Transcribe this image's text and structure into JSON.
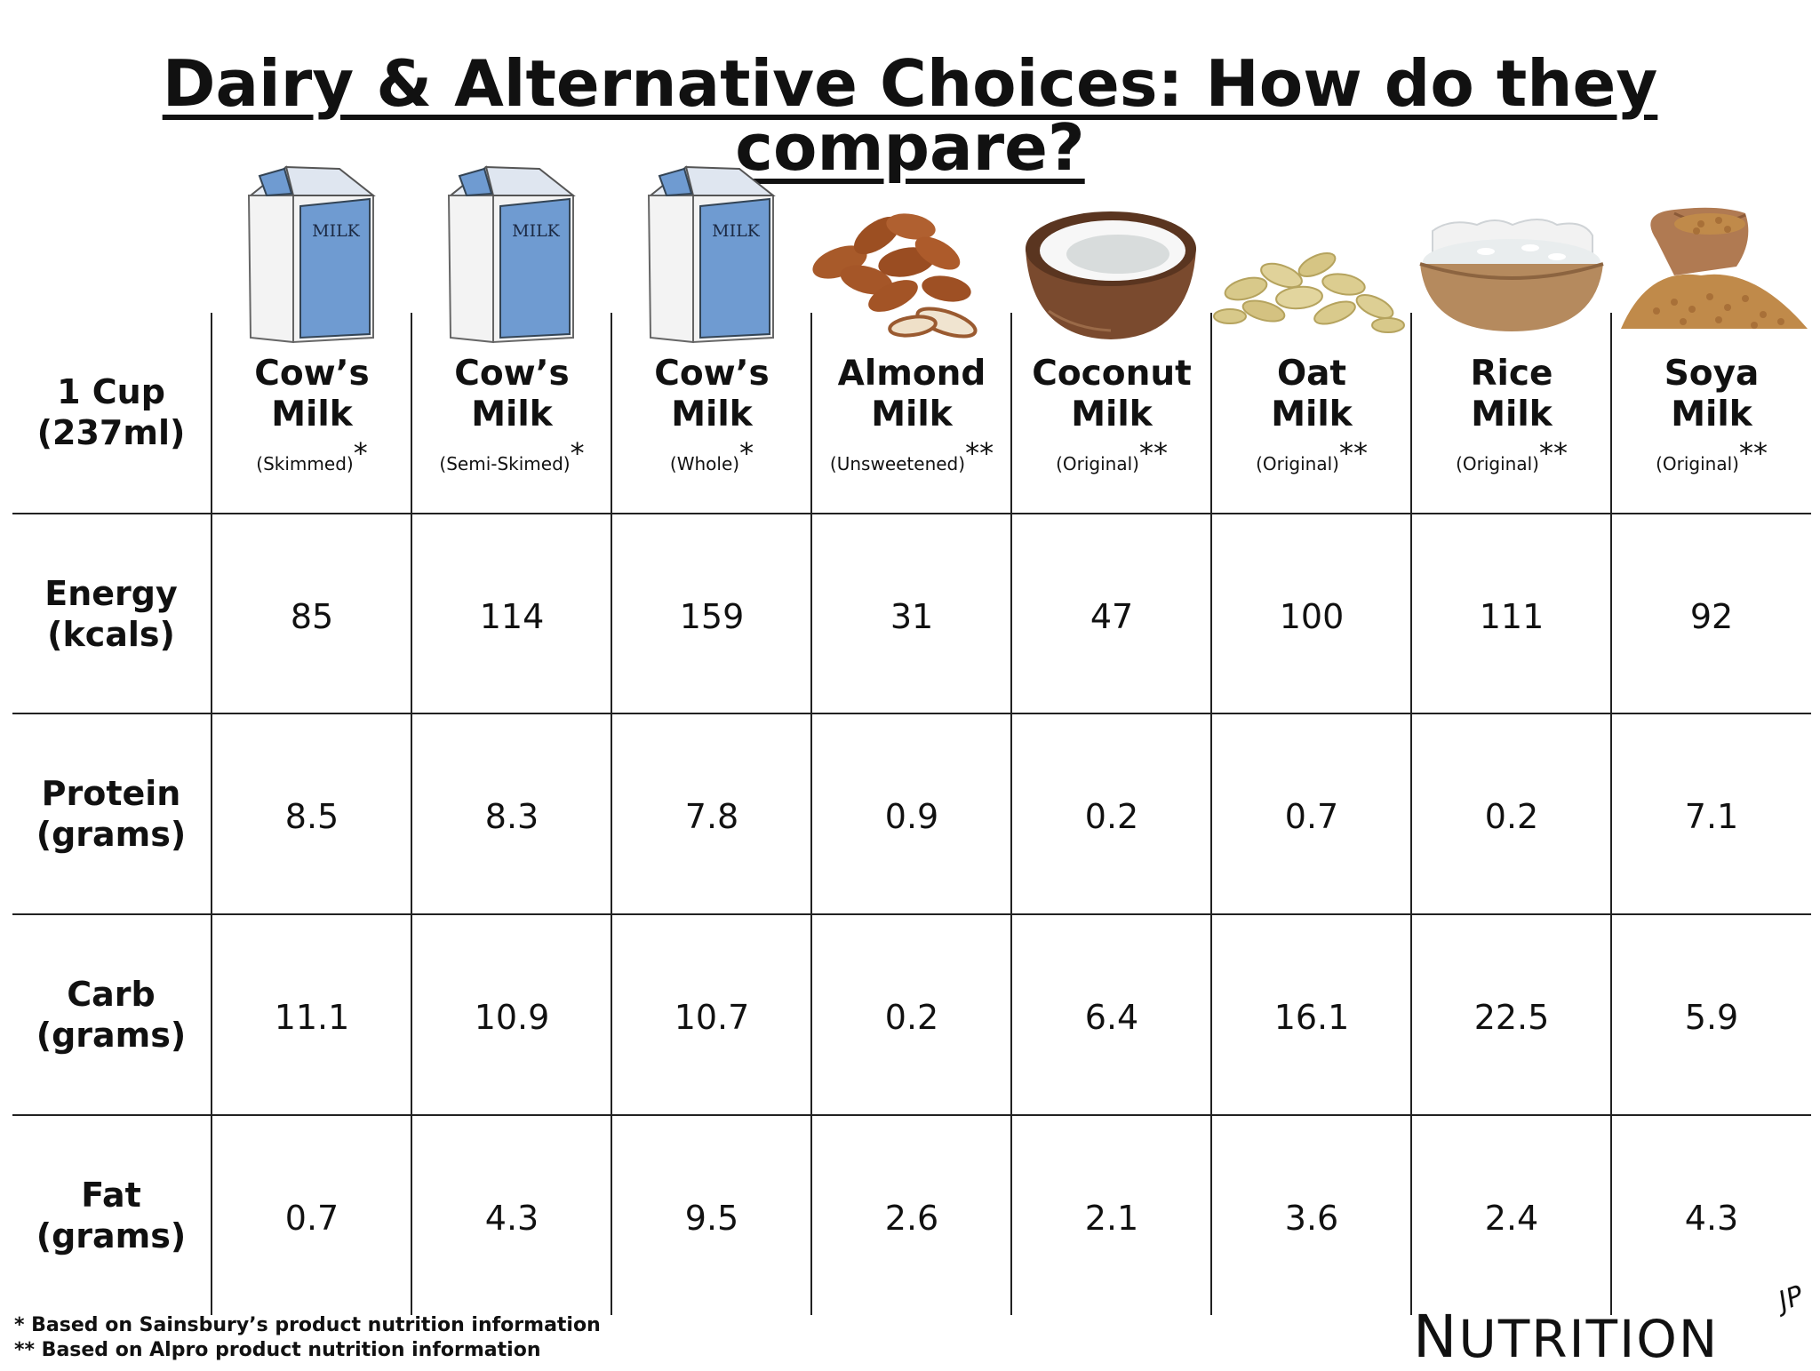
{
  "title": "Dairy & Alternative Choices: How do they compare?",
  "serving": {
    "line1": "1 Cup",
    "line2": "(237ml)"
  },
  "columns": [
    {
      "name1": "Cow’s",
      "name2": "Milk",
      "variant": "(Skimmed)",
      "mark": "*",
      "icon": "milk-carton-icon",
      "carton_label": "MILK"
    },
    {
      "name1": "Cow’s",
      "name2": "Milk",
      "variant": "(Semi-Skimed)",
      "mark": "*",
      "icon": "milk-carton-icon",
      "carton_label": "MILK"
    },
    {
      "name1": "Cow’s",
      "name2": "Milk",
      "variant": "(Whole)",
      "mark": "*",
      "icon": "milk-carton-icon",
      "carton_label": "MILK"
    },
    {
      "name1": "Almond",
      "name2": "Milk",
      "variant": "(Unsweetened)",
      "mark": "**",
      "icon": "almonds-icon"
    },
    {
      "name1": "Coconut",
      "name2": "Milk",
      "variant": "(Original)",
      "mark": "**",
      "icon": "coconut-icon"
    },
    {
      "name1": "Oat",
      "name2": "Milk",
      "variant": "(Original)",
      "mark": "**",
      "icon": "oats-icon"
    },
    {
      "name1": "Rice",
      "name2": "Milk",
      "variant": "(Original)",
      "mark": "**",
      "icon": "rice-bowl-icon"
    },
    {
      "name1": "Soya",
      "name2": "Milk",
      "variant": "(Original)",
      "mark": "**",
      "icon": "soybean-sack-icon"
    }
  ],
  "rows": [
    {
      "label1": "Energy",
      "label2": "(kcals)",
      "values": [
        "85",
        "114",
        "159",
        "31",
        "47",
        "100",
        "111",
        "92"
      ]
    },
    {
      "label1": "Protein",
      "label2": "(grams)",
      "values": [
        "8.5",
        "8.3",
        "7.8",
        "0.9",
        "0.2",
        "0.7",
        "0.2",
        "7.1"
      ]
    },
    {
      "label1": "Carb",
      "label2": "(grams)",
      "values": [
        "11.1",
        "10.9",
        "10.7",
        "0.2",
        "6.4",
        "16.1",
        "22.5",
        "5.9"
      ]
    },
    {
      "label1": "Fat",
      "label2": "(grams)",
      "values": [
        "0.7",
        "4.3",
        "9.5",
        "2.6",
        "2.1",
        "3.6",
        "2.4",
        "4.3"
      ]
    }
  ],
  "footnotes": [
    "*  Based on Sainsbury’s product nutrition information",
    "** Based on Alpro product nutrition information"
  ],
  "logo": {
    "first": "N",
    "rest": "UTRITION",
    "mark": "JP"
  },
  "colors": {
    "carton_blue": "#6f9bd1",
    "carton_white": "#f2f2f2",
    "almond": "#a85a2a",
    "coconut_shell": "#7a4a2e",
    "oat": "#d8c98a",
    "rice_bowl": "#b58a5e",
    "soy": "#c08a4a"
  },
  "chart_data": {
    "type": "table",
    "title": "Dairy & Alternative Choices: How do they compare?",
    "serving": "1 Cup (237ml)",
    "columns": [
      "Cow’s Milk (Skimmed)*",
      "Cow’s Milk (Semi-Skimed)*",
      "Cow’s Milk (Whole)*",
      "Almond Milk (Unsweetened)**",
      "Coconut Milk (Original)**",
      "Oat Milk (Original)**",
      "Rice Milk (Original)**",
      "Soya Milk (Original)**"
    ],
    "rows": [
      {
        "name": "Energy (kcals)",
        "values": [
          85,
          114,
          159,
          31,
          47,
          100,
          111,
          92
        ]
      },
      {
        "name": "Protein (grams)",
        "values": [
          8.5,
          8.3,
          7.8,
          0.9,
          0.2,
          0.7,
          0.2,
          7.1
        ]
      },
      {
        "name": "Carb (grams)",
        "values": [
          11.1,
          10.9,
          10.7,
          0.2,
          6.4,
          16.1,
          22.5,
          5.9
        ]
      },
      {
        "name": "Fat (grams)",
        "values": [
          0.7,
          4.3,
          9.5,
          2.6,
          2.1,
          3.6,
          2.4,
          4.3
        ]
      }
    ]
  }
}
